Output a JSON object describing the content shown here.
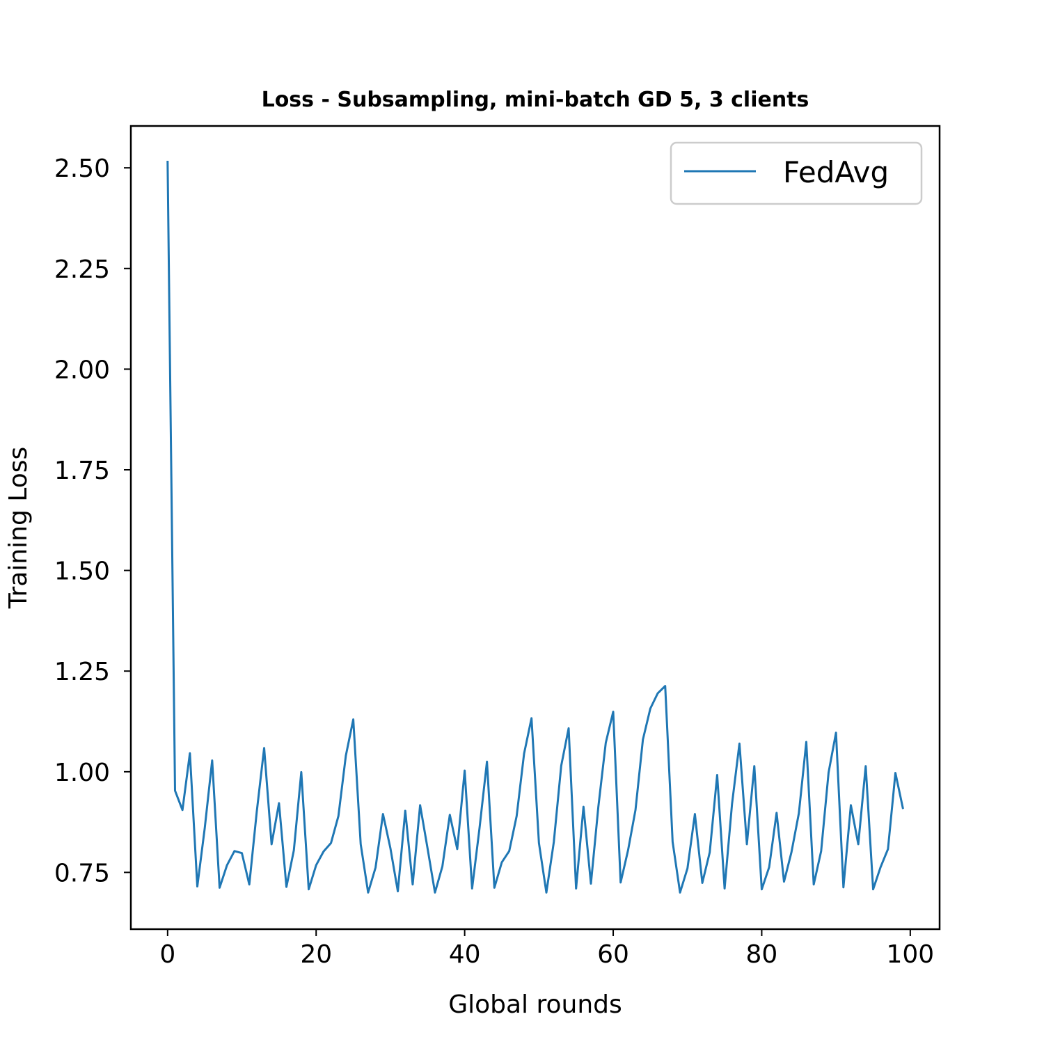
{
  "chart_data": {
    "type": "line",
    "title": "Loss - Subsampling, mini-batch GD 5, 3 clients",
    "xlabel": "Global rounds",
    "ylabel": "Training Loss",
    "xlim": [
      -4.95,
      103.95
    ],
    "ylim": [
      0.609,
      2.604
    ],
    "xticks": [
      0,
      20,
      40,
      60,
      80,
      100
    ],
    "xtick_labels": [
      "0",
      "20",
      "40",
      "60",
      "80",
      "100"
    ],
    "yticks": [
      0.75,
      1.0,
      1.25,
      1.5,
      1.75,
      2.0,
      2.25,
      2.5
    ],
    "ytick_labels": [
      "0.75",
      "1.00",
      "1.25",
      "1.50",
      "1.75",
      "2.00",
      "2.25",
      "2.50"
    ],
    "grid": false,
    "legend_position": "top-right",
    "colors": {
      "FedAvg": "#1f77b4"
    },
    "series": [
      {
        "name": "FedAvg",
        "x": [
          0,
          1,
          2,
          3,
          4,
          5,
          6,
          7,
          8,
          9,
          10,
          11,
          12,
          13,
          14,
          15,
          16,
          17,
          18,
          19,
          20,
          21,
          22,
          23,
          24,
          25,
          26,
          27,
          28,
          29,
          30,
          31,
          32,
          33,
          34,
          35,
          36,
          37,
          38,
          39,
          40,
          41,
          42,
          43,
          44,
          45,
          46,
          47,
          48,
          49,
          50,
          51,
          52,
          53,
          54,
          55,
          56,
          57,
          58,
          59,
          60,
          61,
          62,
          63,
          64,
          65,
          66,
          67,
          68,
          69,
          70,
          71,
          72,
          73,
          74,
          75,
          76,
          77,
          78,
          79,
          80,
          81,
          82,
          83,
          84,
          85,
          86,
          87,
          88,
          89,
          90,
          91,
          92,
          93,
          94,
          95,
          96,
          97,
          98,
          99
        ],
        "values": [
          2.515,
          0.953,
          0.905,
          1.046,
          0.715,
          0.86,
          1.028,
          0.712,
          0.768,
          0.803,
          0.798,
          0.72,
          0.9,
          1.059,
          0.82,
          0.922,
          0.714,
          0.805,
          0.999,
          0.708,
          0.768,
          0.802,
          0.823,
          0.89,
          1.04,
          1.13,
          0.82,
          0.7,
          0.762,
          0.895,
          0.81,
          0.703,
          0.903,
          0.72,
          0.917,
          0.81,
          0.7,
          0.765,
          0.893,
          0.808,
          1.003,
          0.71,
          0.86,
          1.025,
          0.712,
          0.775,
          0.803,
          0.89,
          1.045,
          1.133,
          0.823,
          0.7,
          0.825,
          1.015,
          1.108,
          0.71,
          0.913,
          0.722,
          0.913,
          1.072,
          1.149,
          0.725,
          0.805,
          0.905,
          1.08,
          1.157,
          1.195,
          1.213,
          0.826,
          0.7,
          0.76,
          0.895,
          0.724,
          0.8,
          0.992,
          0.71,
          0.92,
          1.07,
          0.82,
          1.014,
          0.708,
          0.763,
          0.898,
          0.727,
          0.8,
          0.897,
          1.074,
          0.72,
          0.803,
          0.998,
          1.097,
          0.713,
          0.917,
          0.82,
          1.014,
          0.708,
          0.763,
          0.808,
          0.997,
          0.91
        ]
      }
    ]
  }
}
